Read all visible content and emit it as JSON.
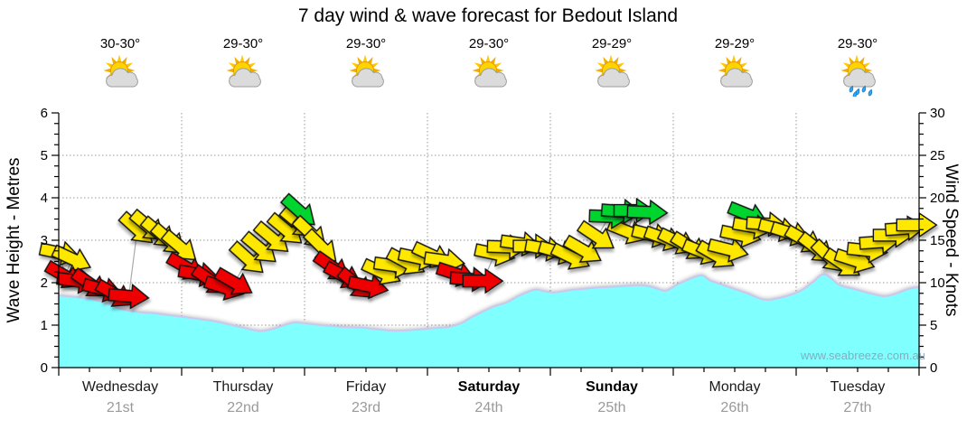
{
  "title": "7 day wind & wave forecast for Bedout Island",
  "watermark": "www.seabreeze.com.au",
  "axes": {
    "left": {
      "title": "Wave Height - Metres"
    },
    "right": {
      "title": "Wind Speed - Knots"
    }
  },
  "forecast": {
    "days": [
      {
        "name": "Wednesday",
        "date": "21st",
        "temp": "30-30°",
        "icon": "sun-cloud",
        "bold": false
      },
      {
        "name": "Thursday",
        "date": "22nd",
        "temp": "29-30°",
        "icon": "sun-cloud",
        "bold": false
      },
      {
        "name": "Friday",
        "date": "23rd",
        "temp": "29-30°",
        "icon": "sun-cloud",
        "bold": false
      },
      {
        "name": "Saturday",
        "date": "24th",
        "temp": "29-30°",
        "icon": "sun-cloud",
        "bold": true
      },
      {
        "name": "Sunday",
        "date": "25th",
        "temp": "29-29°",
        "icon": "sun-cloud",
        "bold": true
      },
      {
        "name": "Monday",
        "date": "26th",
        "temp": "29-29°",
        "icon": "sun-cloud",
        "bold": false
      },
      {
        "name": "Tuesday",
        "date": "27th",
        "temp": "29-30°",
        "icon": "sun-rain",
        "bold": false
      }
    ]
  },
  "chart_data": {
    "type": "area",
    "title": "7 day wind & wave forecast for Bedout Island",
    "x_unit": "days",
    "x_range": [
      0,
      7
    ],
    "x_tick_labels": [
      "Wednesday 21st",
      "Thursday 22nd",
      "Friday 23rd",
      "Saturday 24th",
      "Sunday 25th",
      "Monday 26th",
      "Tuesday 27th"
    ],
    "left_axis": {
      "label": "Wave Height - Metres",
      "range": [
        0,
        6
      ],
      "major_step": 1,
      "minor_step": 0.25
    },
    "right_axis": {
      "label": "Wind Speed - Knots",
      "range": [
        0,
        30
      ],
      "major_step": 5,
      "minor_step": 1.25
    },
    "grid": {
      "horizontal_m": [
        1,
        2,
        3,
        4,
        5
      ],
      "vertical_days": [
        1,
        2,
        3,
        4,
        5,
        6
      ]
    },
    "wave_height_m": {
      "name": "Wave Height (m)",
      "points": [
        [
          0,
          1.7
        ],
        [
          0.1,
          1.67
        ],
        [
          0.26,
          1.62
        ],
        [
          0.4,
          1.5
        ],
        [
          0.51,
          1.38
        ],
        [
          0.64,
          1.31
        ],
        [
          0.77,
          1.28
        ],
        [
          0.88,
          1.24
        ],
        [
          1.0,
          1.2
        ],
        [
          1.12,
          1.15
        ],
        [
          1.25,
          1.1
        ],
        [
          1.38,
          1.02
        ],
        [
          1.5,
          0.94
        ],
        [
          1.64,
          0.86
        ],
        [
          1.75,
          0.92
        ],
        [
          1.88,
          1.04
        ],
        [
          1.95,
          1.06
        ],
        [
          2.1,
          1.01
        ],
        [
          2.3,
          0.96
        ],
        [
          2.46,
          0.94
        ],
        [
          2.6,
          0.9
        ],
        [
          2.72,
          0.87
        ],
        [
          2.85,
          0.88
        ],
        [
          2.94,
          0.9
        ],
        [
          3.06,
          0.93
        ],
        [
          3.18,
          0.96
        ],
        [
          3.28,
          1.05
        ],
        [
          3.35,
          1.17
        ],
        [
          3.45,
          1.32
        ],
        [
          3.55,
          1.45
        ],
        [
          3.64,
          1.53
        ],
        [
          3.75,
          1.7
        ],
        [
          3.87,
          1.83
        ],
        [
          3.95,
          1.8
        ],
        [
          4.03,
          1.77
        ],
        [
          4.15,
          1.82
        ],
        [
          4.25,
          1.85
        ],
        [
          4.4,
          1.89
        ],
        [
          4.55,
          1.91
        ],
        [
          4.74,
          1.94
        ],
        [
          4.85,
          1.88
        ],
        [
          4.94,
          1.81
        ],
        [
          5.05,
          1.98
        ],
        [
          5.22,
          2.17
        ],
        [
          5.3,
          2.05
        ],
        [
          5.4,
          1.95
        ],
        [
          5.5,
          1.85
        ],
        [
          5.61,
          1.74
        ],
        [
          5.74,
          1.6
        ],
        [
          5.88,
          1.65
        ],
        [
          6.03,
          1.8
        ],
        [
          6.13,
          2.0
        ],
        [
          6.23,
          2.2
        ],
        [
          6.35,
          1.95
        ],
        [
          6.47,
          1.85
        ],
        [
          6.6,
          1.75
        ],
        [
          6.72,
          1.68
        ],
        [
          6.82,
          1.75
        ],
        [
          6.91,
          1.85
        ],
        [
          7.0,
          1.9
        ]
      ]
    },
    "wind_arrows_kn": [
      [
        0.01,
        13.5,
        12,
        "y"
      ],
      [
        0.11,
        12.8,
        25,
        "y"
      ],
      [
        0.05,
        10.8,
        30,
        "r"
      ],
      [
        0.15,
        10.2,
        8,
        "r"
      ],
      [
        0.26,
        9.8,
        35,
        "r"
      ],
      [
        0.36,
        9.2,
        15,
        "r"
      ],
      [
        0.46,
        8.6,
        30,
        "r"
      ],
      [
        0.57,
        8.4,
        5,
        "r"
      ],
      [
        0.64,
        16.3,
        42,
        "y"
      ],
      [
        0.73,
        16.6,
        40,
        "y"
      ],
      [
        0.82,
        15.8,
        40,
        "y"
      ],
      [
        0.9,
        15.0,
        41,
        "y"
      ],
      [
        0.99,
        14.2,
        40,
        "y"
      ],
      [
        1.04,
        11.8,
        30,
        "r"
      ],
      [
        1.14,
        11.0,
        10,
        "r"
      ],
      [
        1.24,
        10.2,
        35,
        "r"
      ],
      [
        1.35,
        9.4,
        18,
        "r"
      ],
      [
        1.43,
        10.0,
        30,
        "r"
      ],
      [
        1.54,
        12.8,
        42,
        "y"
      ],
      [
        1.64,
        14.0,
        40,
        "y"
      ],
      [
        1.74,
        15.2,
        40,
        "y"
      ],
      [
        1.85,
        16.2,
        40,
        "y"
      ],
      [
        1.95,
        17.0,
        40,
        "y"
      ],
      [
        1.96,
        18.4,
        42,
        "g"
      ],
      [
        2.05,
        15.8,
        43,
        "y"
      ],
      [
        2.14,
        14.2,
        45,
        "y"
      ],
      [
        2.23,
        11.8,
        35,
        "r"
      ],
      [
        2.32,
        10.8,
        28,
        "r"
      ],
      [
        2.42,
        9.8,
        40,
        "r"
      ],
      [
        2.52,
        9.6,
        12,
        "r"
      ],
      [
        2.63,
        11.2,
        25,
        "y"
      ],
      [
        2.73,
        12.0,
        8,
        "y"
      ],
      [
        2.83,
        12.4,
        28,
        "y"
      ],
      [
        2.93,
        12.9,
        12,
        "y"
      ],
      [
        3.04,
        13.2,
        25,
        "y"
      ],
      [
        3.14,
        12.6,
        8,
        "y"
      ],
      [
        3.24,
        11.0,
        18,
        "r"
      ],
      [
        3.35,
        10.4,
        4,
        "r"
      ],
      [
        3.45,
        10.2,
        0,
        "r"
      ],
      [
        3.55,
        13.4,
        12,
        "y"
      ],
      [
        3.65,
        14.2,
        2,
        "y"
      ],
      [
        3.76,
        14.6,
        8,
        "y"
      ],
      [
        3.86,
        14.3,
        0,
        "y"
      ],
      [
        3.96,
        14.0,
        10,
        "y"
      ],
      [
        4.07,
        13.6,
        16,
        "y"
      ],
      [
        4.17,
        13.0,
        26,
        "y"
      ],
      [
        4.27,
        13.8,
        30,
        "y"
      ],
      [
        4.38,
        15.4,
        34,
        "y"
      ],
      [
        4.63,
        16.0,
        22,
        "y"
      ],
      [
        4.83,
        15.6,
        14,
        "y"
      ],
      [
        4.93,
        15.2,
        20,
        "y"
      ],
      [
        4.48,
        17.8,
        2,
        "g"
      ],
      [
        4.58,
        18.4,
        4,
        "g"
      ],
      [
        4.68,
        18.5,
        0,
        "g"
      ],
      [
        4.79,
        18.3,
        2,
        "g"
      ],
      [
        5.04,
        14.8,
        26,
        "y"
      ],
      [
        5.14,
        14.2,
        32,
        "y"
      ],
      [
        5.24,
        13.6,
        22,
        "y"
      ],
      [
        5.35,
        13.2,
        30,
        "y"
      ],
      [
        5.45,
        13.9,
        14,
        "y"
      ],
      [
        5.55,
        15.6,
        12,
        "y"
      ],
      [
        5.61,
        18.0,
        22,
        "g"
      ],
      [
        5.65,
        16.6,
        10,
        "y"
      ],
      [
        5.76,
        16.9,
        4,
        "y"
      ],
      [
        5.86,
        16.3,
        14,
        "y"
      ],
      [
        5.96,
        15.8,
        18,
        "y"
      ],
      [
        6.07,
        15.0,
        30,
        "y"
      ],
      [
        6.17,
        14.0,
        38,
        "y"
      ],
      [
        6.27,
        13.0,
        44,
        "y"
      ],
      [
        6.38,
        12.2,
        34,
        "y"
      ],
      [
        6.48,
        12.6,
        18,
        "y"
      ],
      [
        6.58,
        13.8,
        6,
        "y"
      ],
      [
        6.68,
        14.8,
        -4,
        "y"
      ],
      [
        6.79,
        15.6,
        0,
        "y"
      ],
      [
        6.89,
        16.4,
        -4,
        "y"
      ],
      [
        6.98,
        16.8,
        0,
        "y"
      ]
    ],
    "colors": {
      "wave_fill": "#80FFFF",
      "wave_line": "#C8C8F0",
      "arrow_yellow": "#FFE800",
      "arrow_red": "#EE0000",
      "arrow_green": "#00D42E",
      "grid": "#999999",
      "date_text": "#9A9A9A",
      "watermark": "#82A0B6"
    },
    "legend": "arrow color: yellow/red/green wind strength-direction glyphs; arrow height = wind speed in knots"
  }
}
